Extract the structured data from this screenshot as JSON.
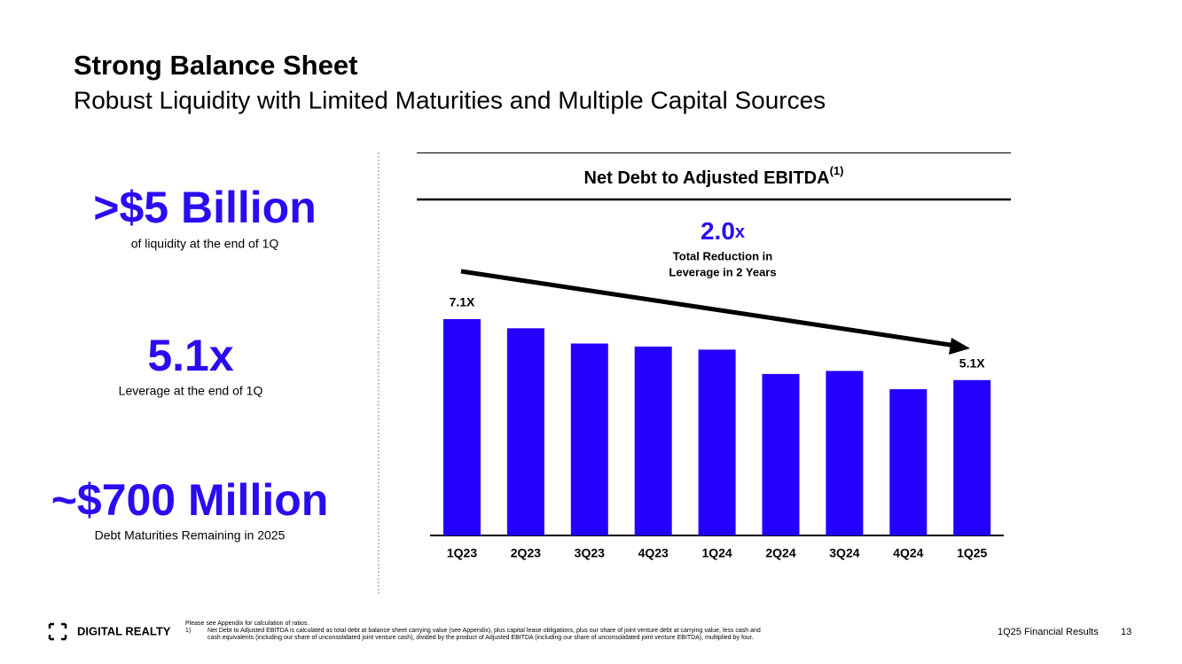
{
  "header": {
    "title": "Strong Balance Sheet",
    "subtitle": "Robust Liquidity with Limited Maturities and Multiple Capital Sources"
  },
  "stats": [
    {
      "value": ">$5 Billion",
      "label": "of liquidity at the end of 1Q"
    },
    {
      "value": "5.1x",
      "label": "Leverage at the end of 1Q"
    },
    {
      "value": "~$700 Million",
      "label": "Debt Maturities Remaining in 2025"
    }
  ],
  "chart_data": {
    "type": "bar",
    "title": "Net Debt to Adjusted EBITDA",
    "title_note": "(1)",
    "categories": [
      "1Q23",
      "2Q23",
      "3Q23",
      "4Q23",
      "1Q24",
      "2Q24",
      "3Q24",
      "4Q24",
      "1Q25"
    ],
    "values": [
      7.1,
      6.8,
      6.3,
      6.2,
      6.1,
      5.3,
      5.4,
      4.8,
      5.1
    ],
    "value_labels": [
      "7.1X",
      null,
      null,
      null,
      null,
      null,
      null,
      null,
      "5.1X"
    ],
    "color": "#2400ff",
    "annotation": {
      "value": "2.0",
      "unit": "x",
      "lines": [
        "Total Reduction in",
        "Leverage in 2 Years"
      ]
    }
  },
  "footer": {
    "logo": "DIGITAL REALTY",
    "notes": [
      "Please see Appendix for calculation of ratios.",
      "1)",
      "Net Debt to Adjusted EBITDA is calculated as total debt at balance sheet carrying value (see Appendix), plus capital lease obligations, plus our share of joint venture debt at carrying value, less cash and",
      "cash equivalents (including our share of unconsolidated joint venture cash), divided by the product of Adjusted EBITDA (including our share of unconsolidated joint venture EBITDA), multiplied by four."
    ],
    "report": "1Q25 Financial Results",
    "page": "13"
  }
}
